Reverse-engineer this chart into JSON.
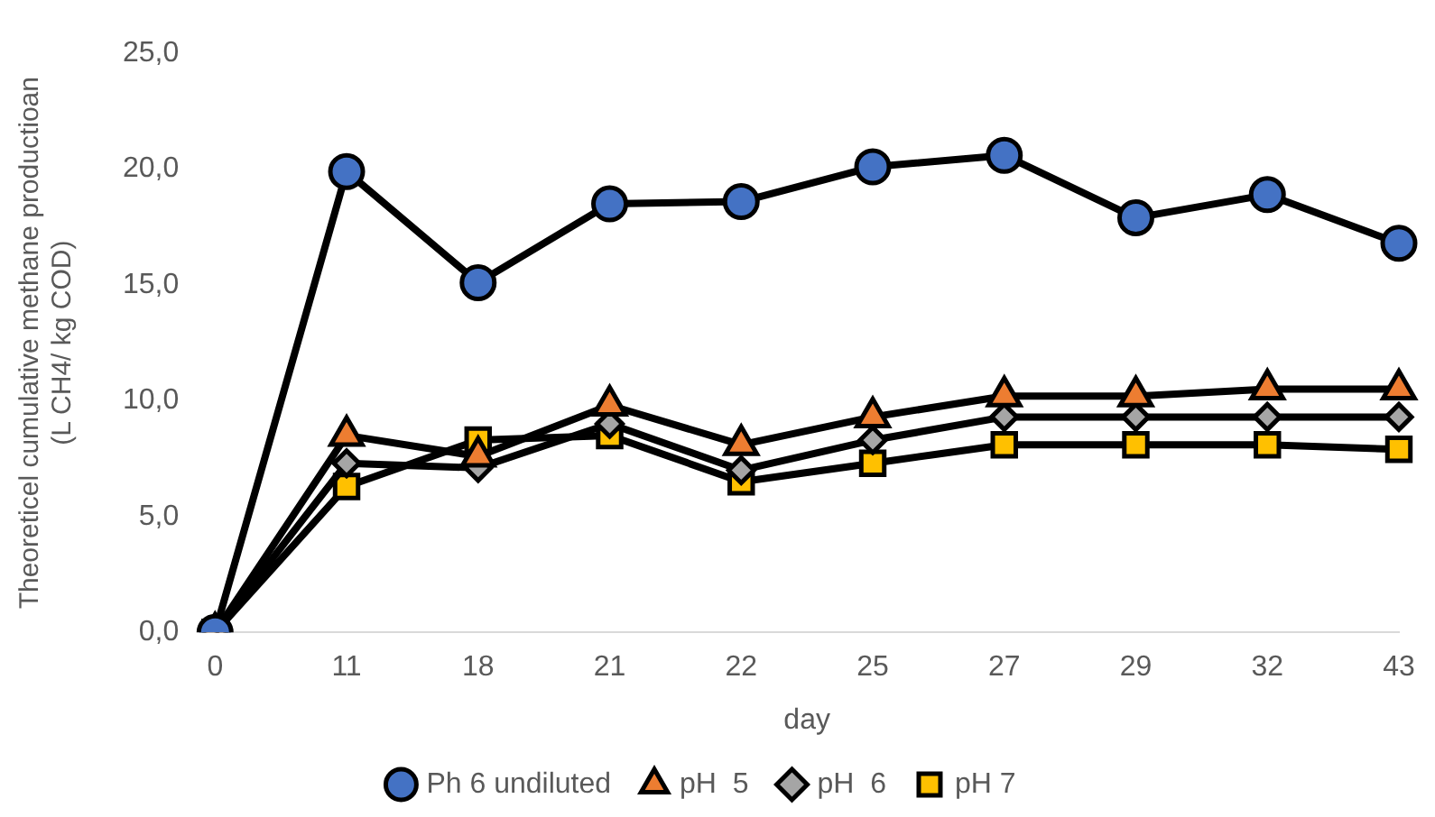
{
  "chart_data": {
    "type": "line",
    "xlabel": "day",
    "ylabel": "Theoreticel cumulative methane productioan (L CH4/ kg COD)",
    "categories": [
      "0",
      "11",
      "18",
      "21",
      "22",
      "25",
      "27",
      "29",
      "32",
      "43"
    ],
    "ylim": [
      0,
      25
    ],
    "yticks": [
      {
        "value": 0,
        "label": "0,0"
      },
      {
        "value": 5,
        "label": "5,0"
      },
      {
        "value": 10,
        "label": "10,0"
      },
      {
        "value": 15,
        "label": "15,0"
      },
      {
        "value": 20,
        "label": "20,0"
      },
      {
        "value": 25,
        "label": "25,0"
      }
    ],
    "grid": false,
    "legend": "bottom",
    "line_style": "solid",
    "series": [
      {
        "name": "Ph 6 undiluted",
        "color": "#4472c4",
        "marker": "circle",
        "values": [
          0,
          19.9,
          15.1,
          18.5,
          18.6,
          20.1,
          20.6,
          17.9,
          18.9,
          16.8
        ]
      },
      {
        "name": "pH  5",
        "color": "#ed7d31",
        "marker": "triangle",
        "values": [
          0,
          8.5,
          7.6,
          9.8,
          8.1,
          9.3,
          10.2,
          10.2,
          10.5,
          10.5
        ]
      },
      {
        "name": "pH  6",
        "color": "#a5a5a5",
        "marker": "diamond",
        "values": [
          0,
          7.3,
          7.1,
          9.0,
          7.0,
          8.3,
          9.3,
          9.3,
          9.3,
          9.3
        ]
      },
      {
        "name": "pH 7",
        "color": "#ffc000",
        "marker": "square",
        "values": [
          0,
          6.3,
          8.3,
          8.5,
          6.5,
          7.3,
          8.1,
          8.1,
          8.1,
          7.9
        ]
      }
    ]
  }
}
